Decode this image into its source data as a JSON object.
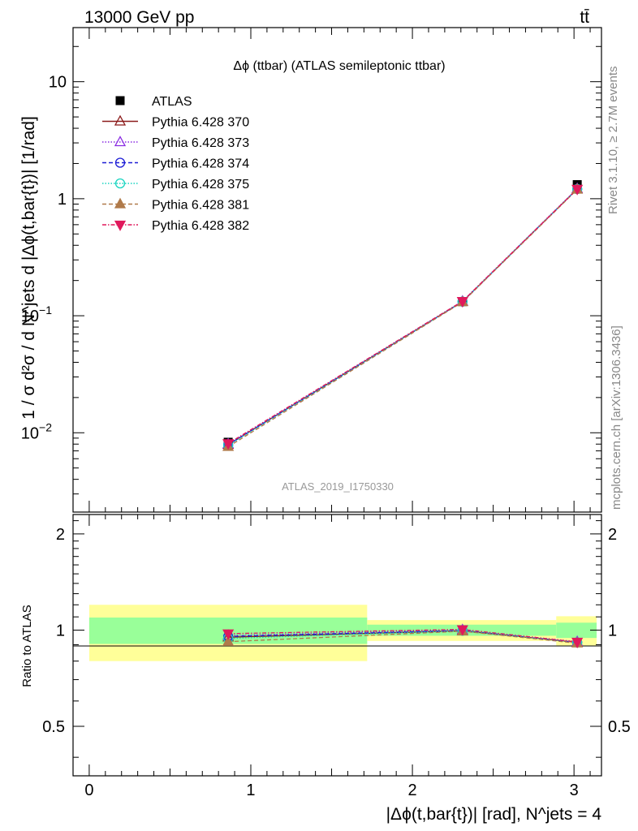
{
  "header": {
    "energy_label": "13000 GeV pp",
    "process_label": "tt̄"
  },
  "side": {
    "rivet": "Rivet 3.1.10, ≥ 2.7M events",
    "mcplots": "mcplots.cern.ch [arXiv:1306.3436]"
  },
  "chart_data": [
    {
      "type": "line",
      "panel": "main",
      "title": "Δϕ (ttbar) (ATLAS semileptonic ttbar)",
      "watermark": "ATLAS_2019_I1750330",
      "ylabel": "1 / σ d²σ / d N^jets d |Δϕ(t,bar{t})| [1/rad]",
      "yscale": "log",
      "xlim": [
        -0.1,
        3.17
      ],
      "ylim": [
        0.0021,
        29
      ],
      "legend_position": "top-left",
      "grid": false,
      "yticks": [
        {
          "value": 0.01,
          "base": "10",
          "exp": "−2"
        },
        {
          "value": 0.1,
          "base": "10",
          "exp": "−1"
        },
        {
          "value": 1,
          "base": "1",
          "exp": ""
        },
        {
          "value": 10,
          "base": "10",
          "exp": ""
        }
      ],
      "data": {
        "name": "ATLAS",
        "x": [
          0.86,
          2.31,
          3.02
        ],
        "y": [
          0.0083,
          0.132,
          1.32
        ]
      },
      "series": [
        {
          "name": "Pythia 6.428 370",
          "color": "#8b1a1a",
          "marker": "triangle-open",
          "dash": "",
          "y": [
            0.0079,
            0.132,
            1.21
          ]
        },
        {
          "name": "Pythia 6.428 373",
          "color": "#8a2be2",
          "marker": "triangle-open",
          "dash": "1.5,2",
          "y": [
            0.008,
            0.133,
            1.22
          ]
        },
        {
          "name": "Pythia 6.428 374",
          "color": "#1c1cd6",
          "marker": "circle-open",
          "dash": "5,3",
          "y": [
            0.0079,
            0.132,
            1.21
          ]
        },
        {
          "name": "Pythia 6.428 375",
          "color": "#17d4c0",
          "marker": "circle-open",
          "dash": "1.5,2",
          "y": [
            0.0078,
            0.132,
            1.21
          ]
        },
        {
          "name": "Pythia 6.428 381",
          "color": "#b07a4a",
          "marker": "triangle-filled",
          "dash": "5,3",
          "y": [
            0.0076,
            0.131,
            1.2
          ]
        },
        {
          "name": "Pythia 6.428 382",
          "color": "#e0195c",
          "marker": "triangle-down-filled",
          "dash": "5,2,1.5,2",
          "y": [
            0.0081,
            0.133,
            1.21
          ]
        }
      ]
    },
    {
      "type": "line",
      "panel": "ratio",
      "ylabel": "Ratio to ATLAS",
      "xlabel": "|Δϕ(t,bar{t})| [rad], N^jets = 4",
      "xlim": [
        -0.1,
        3.17
      ],
      "ylim": [
        0.35,
        2.3
      ],
      "xticks": [
        0,
        1,
        2,
        3
      ],
      "yticks": [
        0.5,
        1,
        2
      ],
      "bins": [
        {
          "lo": 0.0,
          "hi": 1.72,
          "stat_band": [
            0.905,
            1.095
          ],
          "total_band": [
            0.8,
            1.2
          ]
        },
        {
          "lo": 1.72,
          "hi": 2.89,
          "stat_band": [
            0.96,
            1.04
          ],
          "total_band": [
            0.925,
            1.075
          ]
        },
        {
          "lo": 2.89,
          "hi": 3.14,
          "stat_band": [
            0.945,
            1.055
          ],
          "total_band": [
            0.895,
            1.105
          ]
        }
      ],
      "ratios": [
        {
          "name": "Pythia 6.428 370",
          "y": [
            0.95,
            0.995,
            0.915
          ]
        },
        {
          "name": "Pythia 6.428 373",
          "y": [
            0.962,
            1.002,
            0.92
          ]
        },
        {
          "name": "Pythia 6.428 374",
          "y": [
            0.955,
            0.997,
            0.915
          ]
        },
        {
          "name": "Pythia 6.428 375",
          "y": [
            0.942,
            0.995,
            0.915
          ]
        },
        {
          "name": "Pythia 6.428 381",
          "y": [
            0.92,
            0.992,
            0.91
          ]
        },
        {
          "name": "Pythia 6.428 382",
          "y": [
            0.975,
            1.005,
            0.918
          ]
        }
      ]
    }
  ]
}
